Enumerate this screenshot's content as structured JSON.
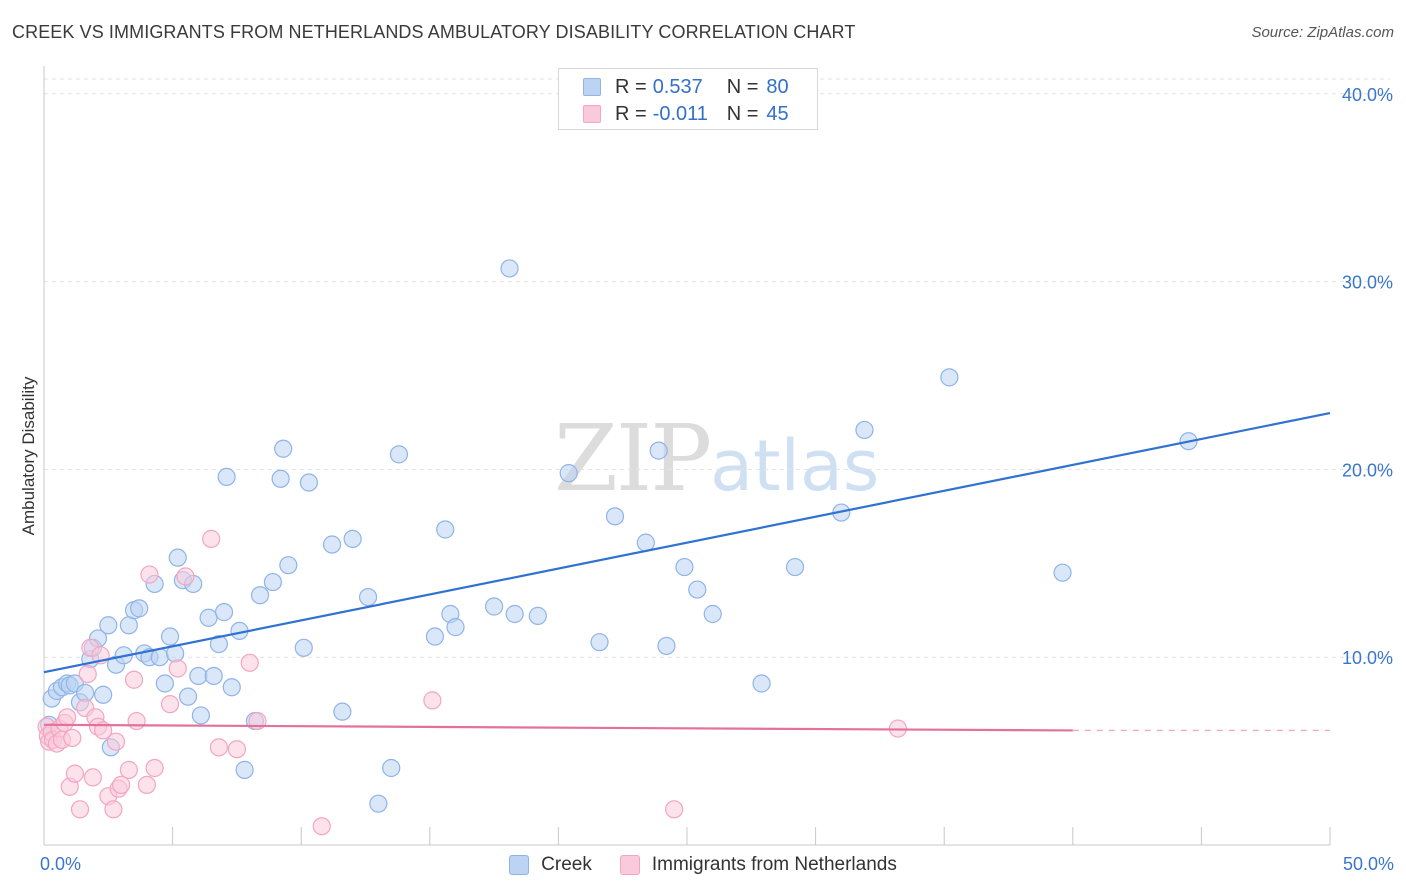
{
  "header": {
    "title": "CREEK VS IMMIGRANTS FROM NETHERLANDS AMBULATORY DISABILITY CORRELATION CHART",
    "source": "Source: ZipAtlas.com"
  },
  "watermark": {
    "zip": "ZIP",
    "atlas": "atlas"
  },
  "legend_top": {
    "rows": [
      {
        "r_label": "R =",
        "r_value": "0.537",
        "n_label": "N =",
        "n_value": "80"
      },
      {
        "r_label": "R =",
        "r_value": "-0.011",
        "n_label": "N =",
        "n_value": "45"
      }
    ]
  },
  "chart_data": {
    "type": "scatter",
    "title": "CREEK VS IMMIGRANTS FROM NETHERLANDS AMBULATORY DISABILITY CORRELATION CHART",
    "xlabel": "",
    "ylabel": "Ambulatory Disability",
    "xlim": [
      0,
      50
    ],
    "ylim": [
      0,
      41
    ],
    "x_ticks": [
      0,
      5,
      10,
      15,
      20,
      25,
      30,
      35,
      40,
      45,
      50
    ],
    "x_tick_labels": [
      {
        "x": 0,
        "label": "0.0%"
      },
      {
        "x": 50,
        "label": "50.0%"
      }
    ],
    "y_ticks": [
      10,
      20,
      30,
      40
    ],
    "y_tick_labels": [
      "10.0%",
      "20.0%",
      "30.0%",
      "40.0%"
    ],
    "grid": true,
    "legend": "bottom-center",
    "series": [
      {
        "name": "Creek",
        "color": "#8fb4e8",
        "fill": "#bcd3f3",
        "line_color": "#2f72d2",
        "r": 0.537,
        "n": 80,
        "trend": [
          [
            0,
            9.2
          ],
          [
            50,
            23.0
          ]
        ],
        "points": [
          [
            0.2,
            6.4
          ],
          [
            0.3,
            7.8
          ],
          [
            0.5,
            8.2
          ],
          [
            0.7,
            8.4
          ],
          [
            0.9,
            8.6
          ],
          [
            1.0,
            8.5
          ],
          [
            1.2,
            8.6
          ],
          [
            1.4,
            7.6
          ],
          [
            1.6,
            8.1
          ],
          [
            1.8,
            9.9
          ],
          [
            1.9,
            10.5
          ],
          [
            2.1,
            11.0
          ],
          [
            2.3,
            8.0
          ],
          [
            2.5,
            11.7
          ],
          [
            2.6,
            5.2
          ],
          [
            2.8,
            9.6
          ],
          [
            3.1,
            10.1
          ],
          [
            3.3,
            11.7
          ],
          [
            3.5,
            12.5
          ],
          [
            3.7,
            12.6
          ],
          [
            3.9,
            10.2
          ],
          [
            4.1,
            10.0
          ],
          [
            4.3,
            13.9
          ],
          [
            4.5,
            10.0
          ],
          [
            4.7,
            8.6
          ],
          [
            4.9,
            11.1
          ],
          [
            5.1,
            10.2
          ],
          [
            5.2,
            15.3
          ],
          [
            5.4,
            14.1
          ],
          [
            5.6,
            7.9
          ],
          [
            5.8,
            13.9
          ],
          [
            6.0,
            9.0
          ],
          [
            6.1,
            6.9
          ],
          [
            6.4,
            12.1
          ],
          [
            6.6,
            9.0
          ],
          [
            6.8,
            10.7
          ],
          [
            7.0,
            12.4
          ],
          [
            7.1,
            19.6
          ],
          [
            7.3,
            8.4
          ],
          [
            7.6,
            11.4
          ],
          [
            7.8,
            4.0
          ],
          [
            8.2,
            6.6
          ],
          [
            8.4,
            13.3
          ],
          [
            8.9,
            14.0
          ],
          [
            9.2,
            19.5
          ],
          [
            9.3,
            21.1
          ],
          [
            9.5,
            14.9
          ],
          [
            10.1,
            10.5
          ],
          [
            10.3,
            19.3
          ],
          [
            11.2,
            16.0
          ],
          [
            11.6,
            7.1
          ],
          [
            12.0,
            16.3
          ],
          [
            12.6,
            13.2
          ],
          [
            13.0,
            2.2
          ],
          [
            13.5,
            4.1
          ],
          [
            13.8,
            20.8
          ],
          [
            15.2,
            11.1
          ],
          [
            15.6,
            16.8
          ],
          [
            15.8,
            12.3
          ],
          [
            16.0,
            11.6
          ],
          [
            17.5,
            12.7
          ],
          [
            18.1,
            30.7
          ],
          [
            18.3,
            12.3
          ],
          [
            19.2,
            12.2
          ],
          [
            20.4,
            19.8
          ],
          [
            21.6,
            10.8
          ],
          [
            22.2,
            17.5
          ],
          [
            23.4,
            16.1
          ],
          [
            23.9,
            21.0
          ],
          [
            24.2,
            10.6
          ],
          [
            24.9,
            14.8
          ],
          [
            25.4,
            13.6
          ],
          [
            26.0,
            12.3
          ],
          [
            27.9,
            8.6
          ],
          [
            29.2,
            14.8
          ],
          [
            31.0,
            17.7
          ],
          [
            31.9,
            22.1
          ],
          [
            35.2,
            24.9
          ],
          [
            39.6,
            14.5
          ],
          [
            44.5,
            21.5
          ]
        ]
      },
      {
        "name": "Immigrants from Netherlands",
        "color": "#f4a5c2",
        "fill": "#f9cadb",
        "line_color": "#e4709c",
        "r": -0.011,
        "n": 45,
        "trend": [
          [
            0,
            6.4
          ],
          [
            40,
            6.1
          ]
        ],
        "trend_dashed": [
          [
            40,
            6.1
          ],
          [
            50,
            6.1
          ]
        ],
        "points": [
          [
            0.1,
            6.3
          ],
          [
            0.15,
            5.8
          ],
          [
            0.2,
            5.5
          ],
          [
            0.3,
            6.0
          ],
          [
            0.35,
            5.6
          ],
          [
            0.5,
            5.4
          ],
          [
            0.6,
            6.2
          ],
          [
            0.7,
            5.6
          ],
          [
            0.8,
            6.5
          ],
          [
            0.9,
            6.8
          ],
          [
            1.0,
            3.1
          ],
          [
            1.1,
            5.7
          ],
          [
            1.2,
            3.8
          ],
          [
            1.4,
            1.9
          ],
          [
            1.6,
            7.3
          ],
          [
            1.7,
            9.1
          ],
          [
            1.8,
            10.5
          ],
          [
            1.9,
            3.6
          ],
          [
            2.0,
            6.8
          ],
          [
            2.1,
            6.3
          ],
          [
            2.2,
            10.1
          ],
          [
            2.3,
            6.1
          ],
          [
            2.5,
            2.6
          ],
          [
            2.7,
            1.9
          ],
          [
            2.8,
            5.5
          ],
          [
            2.9,
            3.0
          ],
          [
            3.0,
            3.2
          ],
          [
            3.3,
            4.0
          ],
          [
            3.5,
            8.8
          ],
          [
            3.6,
            6.6
          ],
          [
            4.0,
            3.2
          ],
          [
            4.1,
            14.4
          ],
          [
            4.3,
            4.1
          ],
          [
            4.9,
            7.5
          ],
          [
            5.2,
            9.4
          ],
          [
            5.5,
            14.3
          ],
          [
            6.5,
            16.3
          ],
          [
            6.8,
            5.2
          ],
          [
            7.5,
            5.1
          ],
          [
            8.0,
            9.7
          ],
          [
            8.3,
            6.6
          ],
          [
            10.8,
            1.0
          ],
          [
            15.1,
            7.7
          ],
          [
            24.5,
            1.9
          ],
          [
            33.2,
            6.2
          ]
        ]
      }
    ]
  }
}
